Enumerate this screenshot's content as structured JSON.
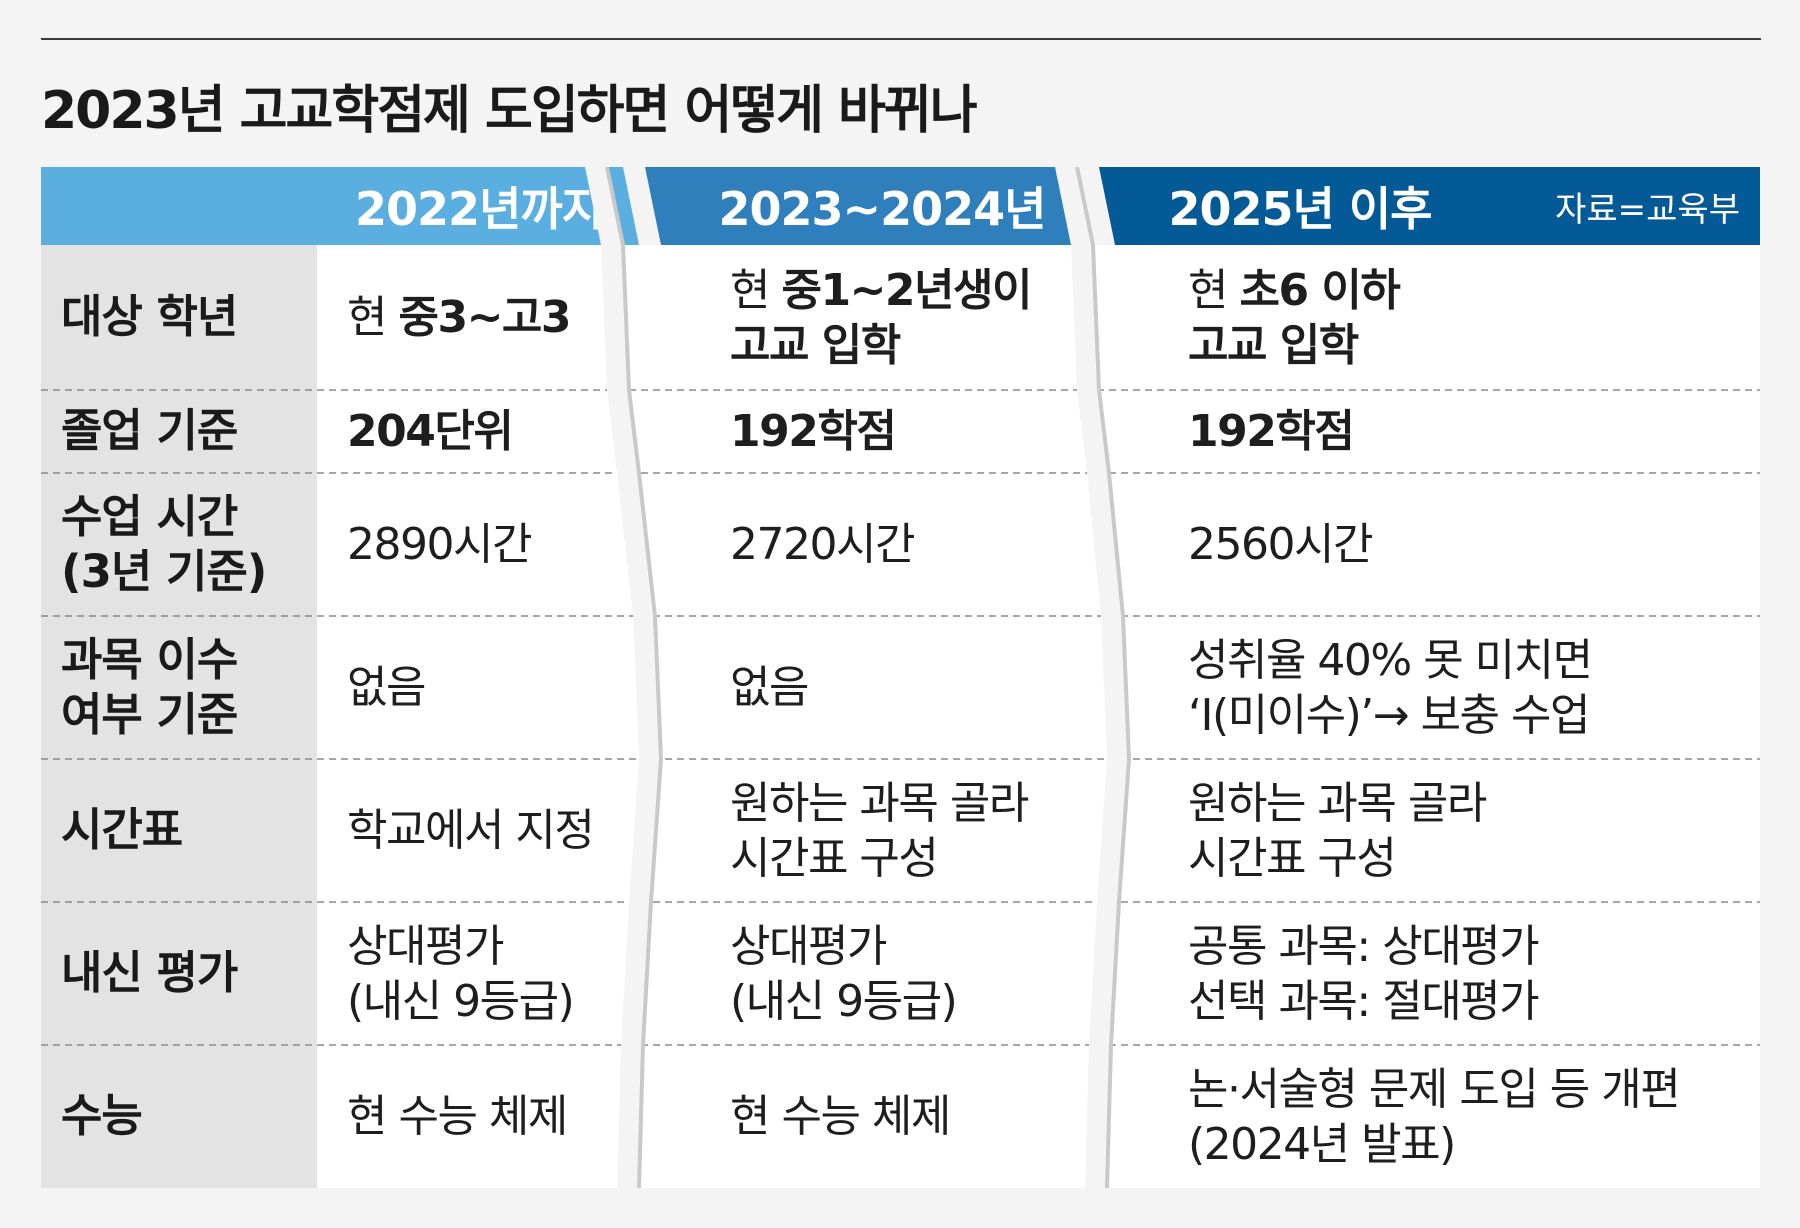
{
  "title": "2023년 고교학점제 도입하면 어떻게 바뀌나",
  "header": {
    "col1": "2022년까지",
    "col2": "2023~2024년",
    "col3": "2025년 이후",
    "source": "자료=교육부"
  },
  "colors": {
    "header_col1": "#5aaee0",
    "header_col2": "#2f7fbd",
    "header_col3": "#045a96",
    "label_bg": "#e3e3e3",
    "cell_bg": "#ffffff",
    "page_bg": "#f4f4f4"
  },
  "rows": [
    {
      "label": [
        "대상 학년"
      ],
      "c1": [
        [
          "현 ",
          "중3~고3"
        ]
      ],
      "c2": [
        [
          "현 ",
          "중1~2년생이"
        ],
        [
          "",
          "고교 입학"
        ]
      ],
      "c3": [
        [
          "현 ",
          "초6 이하"
        ],
        [
          "",
          "고교 입학"
        ]
      ]
    },
    {
      "label": [
        "졸업 기준"
      ],
      "c1": [
        [
          "",
          "204단위"
        ]
      ],
      "c2": [
        [
          "",
          "192학점"
        ]
      ],
      "c3": [
        [
          "",
          "192학점"
        ]
      ]
    },
    {
      "label": [
        "수업 시간",
        "(3년 기준)"
      ],
      "c1": [
        [
          "2890시간",
          ""
        ]
      ],
      "c2": [
        [
          "2720시간",
          ""
        ]
      ],
      "c3": [
        [
          "2560시간",
          ""
        ]
      ]
    },
    {
      "label": [
        "과목 이수",
        "여부 기준"
      ],
      "c1": [
        [
          "없음",
          ""
        ]
      ],
      "c2": [
        [
          "없음",
          ""
        ]
      ],
      "c3": [
        [
          "성취율 40% 못 미치면",
          ""
        ],
        [
          "‘I(미이수)’→ 보충 수업",
          ""
        ]
      ]
    },
    {
      "label": [
        "시간표"
      ],
      "c1": [
        [
          "학교에서 지정",
          ""
        ]
      ],
      "c2": [
        [
          "원하는 과목 골라",
          ""
        ],
        [
          "시간표 구성",
          ""
        ]
      ],
      "c3": [
        [
          "원하는 과목 골라",
          ""
        ],
        [
          "시간표 구성",
          ""
        ]
      ]
    },
    {
      "label": [
        "내신 평가"
      ],
      "c1": [
        [
          "상대평가",
          ""
        ],
        [
          "(내신 9등급)",
          ""
        ]
      ],
      "c2": [
        [
          "상대평가",
          ""
        ],
        [
          "(내신 9등급)",
          ""
        ]
      ],
      "c3": [
        [
          "공통 과목: 상대평가",
          ""
        ],
        [
          "선택 과목: 절대평가",
          ""
        ]
      ]
    },
    {
      "label": [
        "수능"
      ],
      "c1": [
        [
          "현 수능 체제",
          ""
        ]
      ],
      "c2": [
        [
          "현 수능 체제",
          ""
        ]
      ],
      "c3": [
        [
          "논·서술형 문제 도입 등 개편",
          ""
        ],
        [
          "(2024년 발표)",
          ""
        ]
      ]
    }
  ]
}
